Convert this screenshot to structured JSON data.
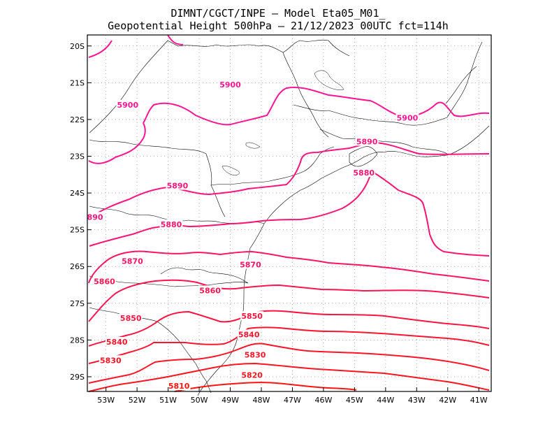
{
  "title": {
    "line1": "DIMNT/CGCT/INPE –  Model Eta05_M01_",
    "line2": "Geopotential Height 500hPa –  21/12/2023 00UTC fct=114h"
  },
  "chart_data": {
    "type": "contour",
    "variable": "Geopotential Height 500hPa",
    "lon_range": [
      -53.6,
      -40.6
    ],
    "lat_range": [
      -29.4,
      -19.7
    ],
    "x_ticks": [
      "53W",
      "52W",
      "51W",
      "50W",
      "49W",
      "48W",
      "47W",
      "46W",
      "45W",
      "44W",
      "43W",
      "42W",
      "41W"
    ],
    "y_ticks": [
      "20S",
      "21S",
      "22S",
      "23S",
      "24S",
      "25S",
      "26S",
      "27S",
      "28S",
      "29S"
    ],
    "grid": true,
    "contour_colors": {
      "5900": "#ff1493",
      "5890": "#ff1480",
      "5880": "#ff1470",
      "5870": "#ff1460",
      "5860": "#ff1450",
      "5850": "#ff1440",
      "5840": "#ff1430",
      "5830": "#ff1428",
      "5820": "#ff1420",
      "5810": "#ff1410"
    },
    "contour_labels": [
      {
        "text": "5900",
        "lon": -49.0,
        "lat": -21.05
      },
      {
        "text": "5900",
        "lon": -52.3,
        "lat": -21.6
      },
      {
        "text": "5900",
        "lon": -43.3,
        "lat": -21.95
      },
      {
        "text": "5890",
        "lon": -50.7,
        "lat": -23.8
      },
      {
        "text": "5890",
        "lon": -44.6,
        "lat": -22.6
      },
      {
        "text": "890",
        "lon": -53.35,
        "lat": -24.65
      },
      {
        "text": "5880",
        "lon": -50.9,
        "lat": -24.85
      },
      {
        "text": "5880",
        "lon": -44.7,
        "lat": -23.45
      },
      {
        "text": "5870",
        "lon": -52.15,
        "lat": -25.85
      },
      {
        "text": "5870",
        "lon": -48.35,
        "lat": -25.95
      },
      {
        "text": "5860",
        "lon": -53.05,
        "lat": -26.4
      },
      {
        "text": "5860",
        "lon": -49.65,
        "lat": -26.65
      },
      {
        "text": "5850",
        "lon": -52.2,
        "lat": -27.4
      },
      {
        "text": "5850",
        "lon": -48.3,
        "lat": -27.35
      },
      {
        "text": "5840",
        "lon": -52.65,
        "lat": -28.05
      },
      {
        "text": "5840",
        "lon": -48.4,
        "lat": -27.85
      },
      {
        "text": "5830",
        "lon": -52.85,
        "lat": -28.55
      },
      {
        "text": "5830",
        "lon": -48.2,
        "lat": -28.4
      },
      {
        "text": "5820",
        "lon": -48.3,
        "lat": -28.95
      },
      {
        "text": "5810",
        "lon": -50.65,
        "lat": -29.25
      }
    ]
  }
}
